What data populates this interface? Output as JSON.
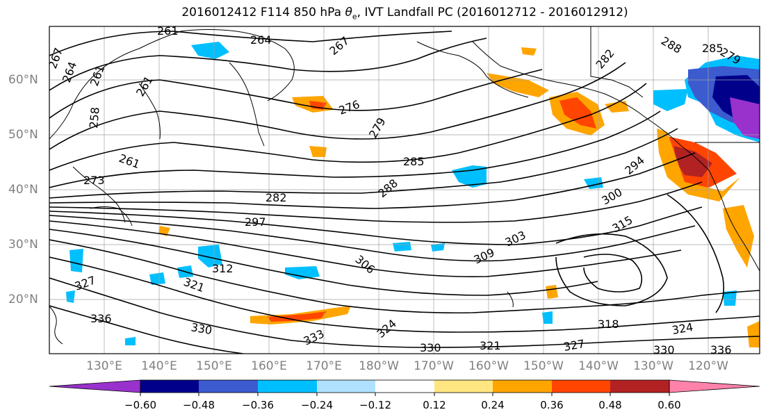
{
  "title_prefix": "2016012412 F114 850 hPa ",
  "title_theta": "θ",
  "title_theta_sub": "e",
  "title_suffix": ", IVT Landfall PC (2016012712 - 2016012912)",
  "latitude_labels": [
    "60°N",
    "50°N",
    "40°N",
    "30°N",
    "20°N"
  ],
  "longitude_labels": [
    "130°E",
    "140°E",
    "150°E",
    "160°E",
    "170°E",
    "180°W",
    "170°W",
    "160°W",
    "150°W",
    "140°W",
    "130°W",
    "120°W"
  ],
  "contour_labels": [
    "261",
    "264",
    "267",
    "264",
    "261",
    "267",
    "276",
    "279",
    "285",
    "288",
    "282",
    "297",
    "294",
    "300",
    "315",
    "309",
    "303",
    "306",
    "312",
    "321",
    "327",
    "336",
    "330",
    "333",
    "324",
    "330",
    "321",
    "327",
    "318",
    "324",
    "330",
    "336",
    "288",
    "285",
    "273",
    "258",
    "261",
    "261",
    "282",
    "279"
  ],
  "colorbar": {
    "ticks": [
      "−0.60",
      "−0.48",
      "−0.36",
      "−0.24",
      "−0.12",
      "0.12",
      "0.24",
      "0.36",
      "0.48",
      "0.60"
    ],
    "colors": [
      "#9932cc",
      "#00008b",
      "#3b5bcf",
      "#00bfff",
      "#b0e2ff",
      "#ffffff",
      "#ffe680",
      "#ffa500",
      "#ff4500",
      "#b22222",
      "#ff82ab"
    ]
  }
}
